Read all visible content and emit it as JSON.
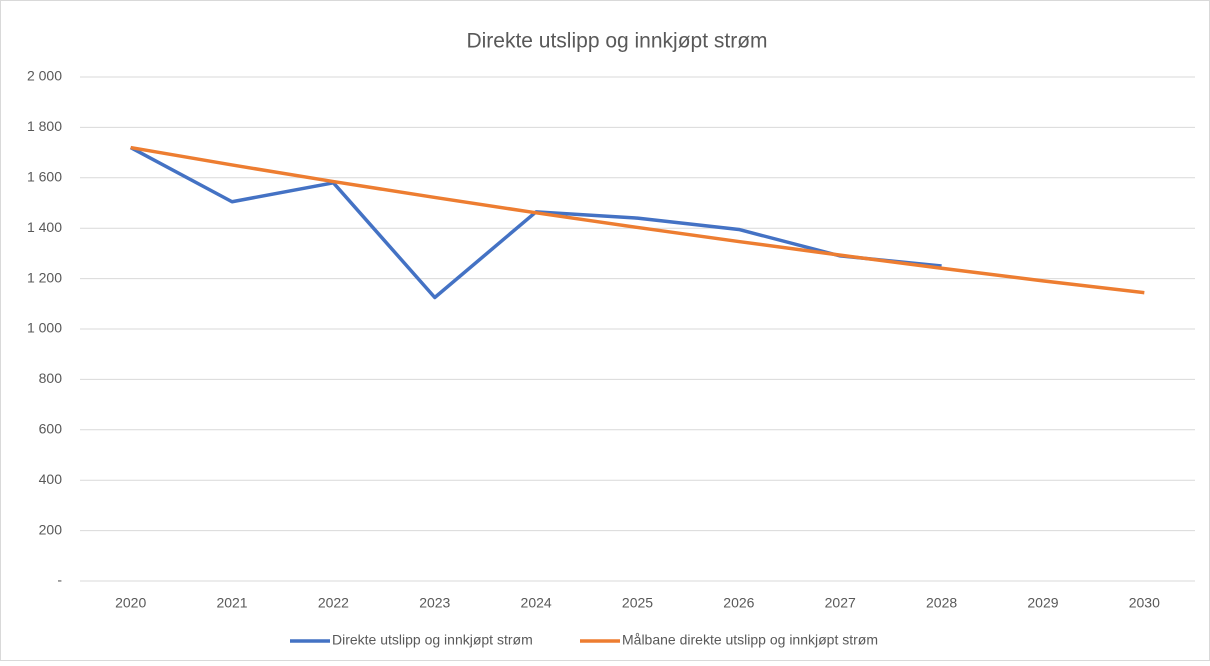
{
  "chart_data": {
    "type": "line",
    "title": "Direkte utslipp og innkjøpt strøm",
    "categories": [
      "2020",
      "2021",
      "2022",
      "2023",
      "2024",
      "2025",
      "2026",
      "2027",
      "2028",
      "2029",
      "2030"
    ],
    "series": [
      {
        "name": "Direkte utslipp og innkjøpt strøm",
        "color": "#4472c4",
        "values": [
          1720,
          1505,
          1580,
          1125,
          1465,
          1440,
          1395,
          1290,
          1250,
          null,
          null
        ]
      },
      {
        "name": "Målbane direkte utslipp og innkjøpt strøm",
        "color": "#ed7d31",
        "values": [
          1720,
          1651,
          1585,
          1522,
          1461,
          1403,
          1347,
          1293,
          1241,
          1191,
          1144
        ]
      }
    ],
    "ylim": [
      0,
      2000
    ],
    "yticks": [
      {
        "value": 0,
        "label": "-"
      },
      {
        "value": 200,
        "label": "200"
      },
      {
        "value": 400,
        "label": "400"
      },
      {
        "value": 600,
        "label": "600"
      },
      {
        "value": 800,
        "label": "800"
      },
      {
        "value": 1000,
        "label": "1 000"
      },
      {
        "value": 1200,
        "label": "1 200"
      },
      {
        "value": 1400,
        "label": "1 400"
      },
      {
        "value": 1600,
        "label": "1 600"
      },
      {
        "value": 1800,
        "label": "1 800"
      },
      {
        "value": 2000,
        "label": "2 000"
      }
    ],
    "grid": true,
    "legend": "bottom"
  }
}
